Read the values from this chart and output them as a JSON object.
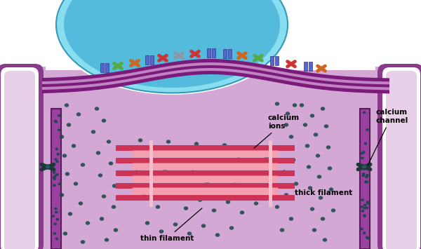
{
  "bg_color": "#ffffff",
  "muscle_light": "#d4a8d4",
  "muscle_medium": "#c090c0",
  "muscle_dark_border": "#8b3a8b",
  "muscle_very_dark": "#5a1a5a",
  "t_tubule_white": "#ffffff",
  "t_tubule_light": "#e8d0e8",
  "nucleus_fill": "#55bbdd",
  "nucleus_light": "#88ddee",
  "nucleus_border": "#3399bb",
  "membrane_dark": "#7a1a7a",
  "membrane_stripe": "#e0b0e0",
  "thick_color": "#cc3355",
  "thin_color": "#f5a0b0",
  "z_line_color": "#f0c0cc",
  "calcium_color": "#1a4a4a",
  "sr_dark": "#7a1a7a",
  "sr_fill": "#b060b0",
  "text_color": "#000000",
  "lbl_ca_ions": "calcium\nions",
  "lbl_ca_channel": "calcium\nchannel",
  "lbl_thick": "thick filament",
  "lbl_thin": "thin filament"
}
